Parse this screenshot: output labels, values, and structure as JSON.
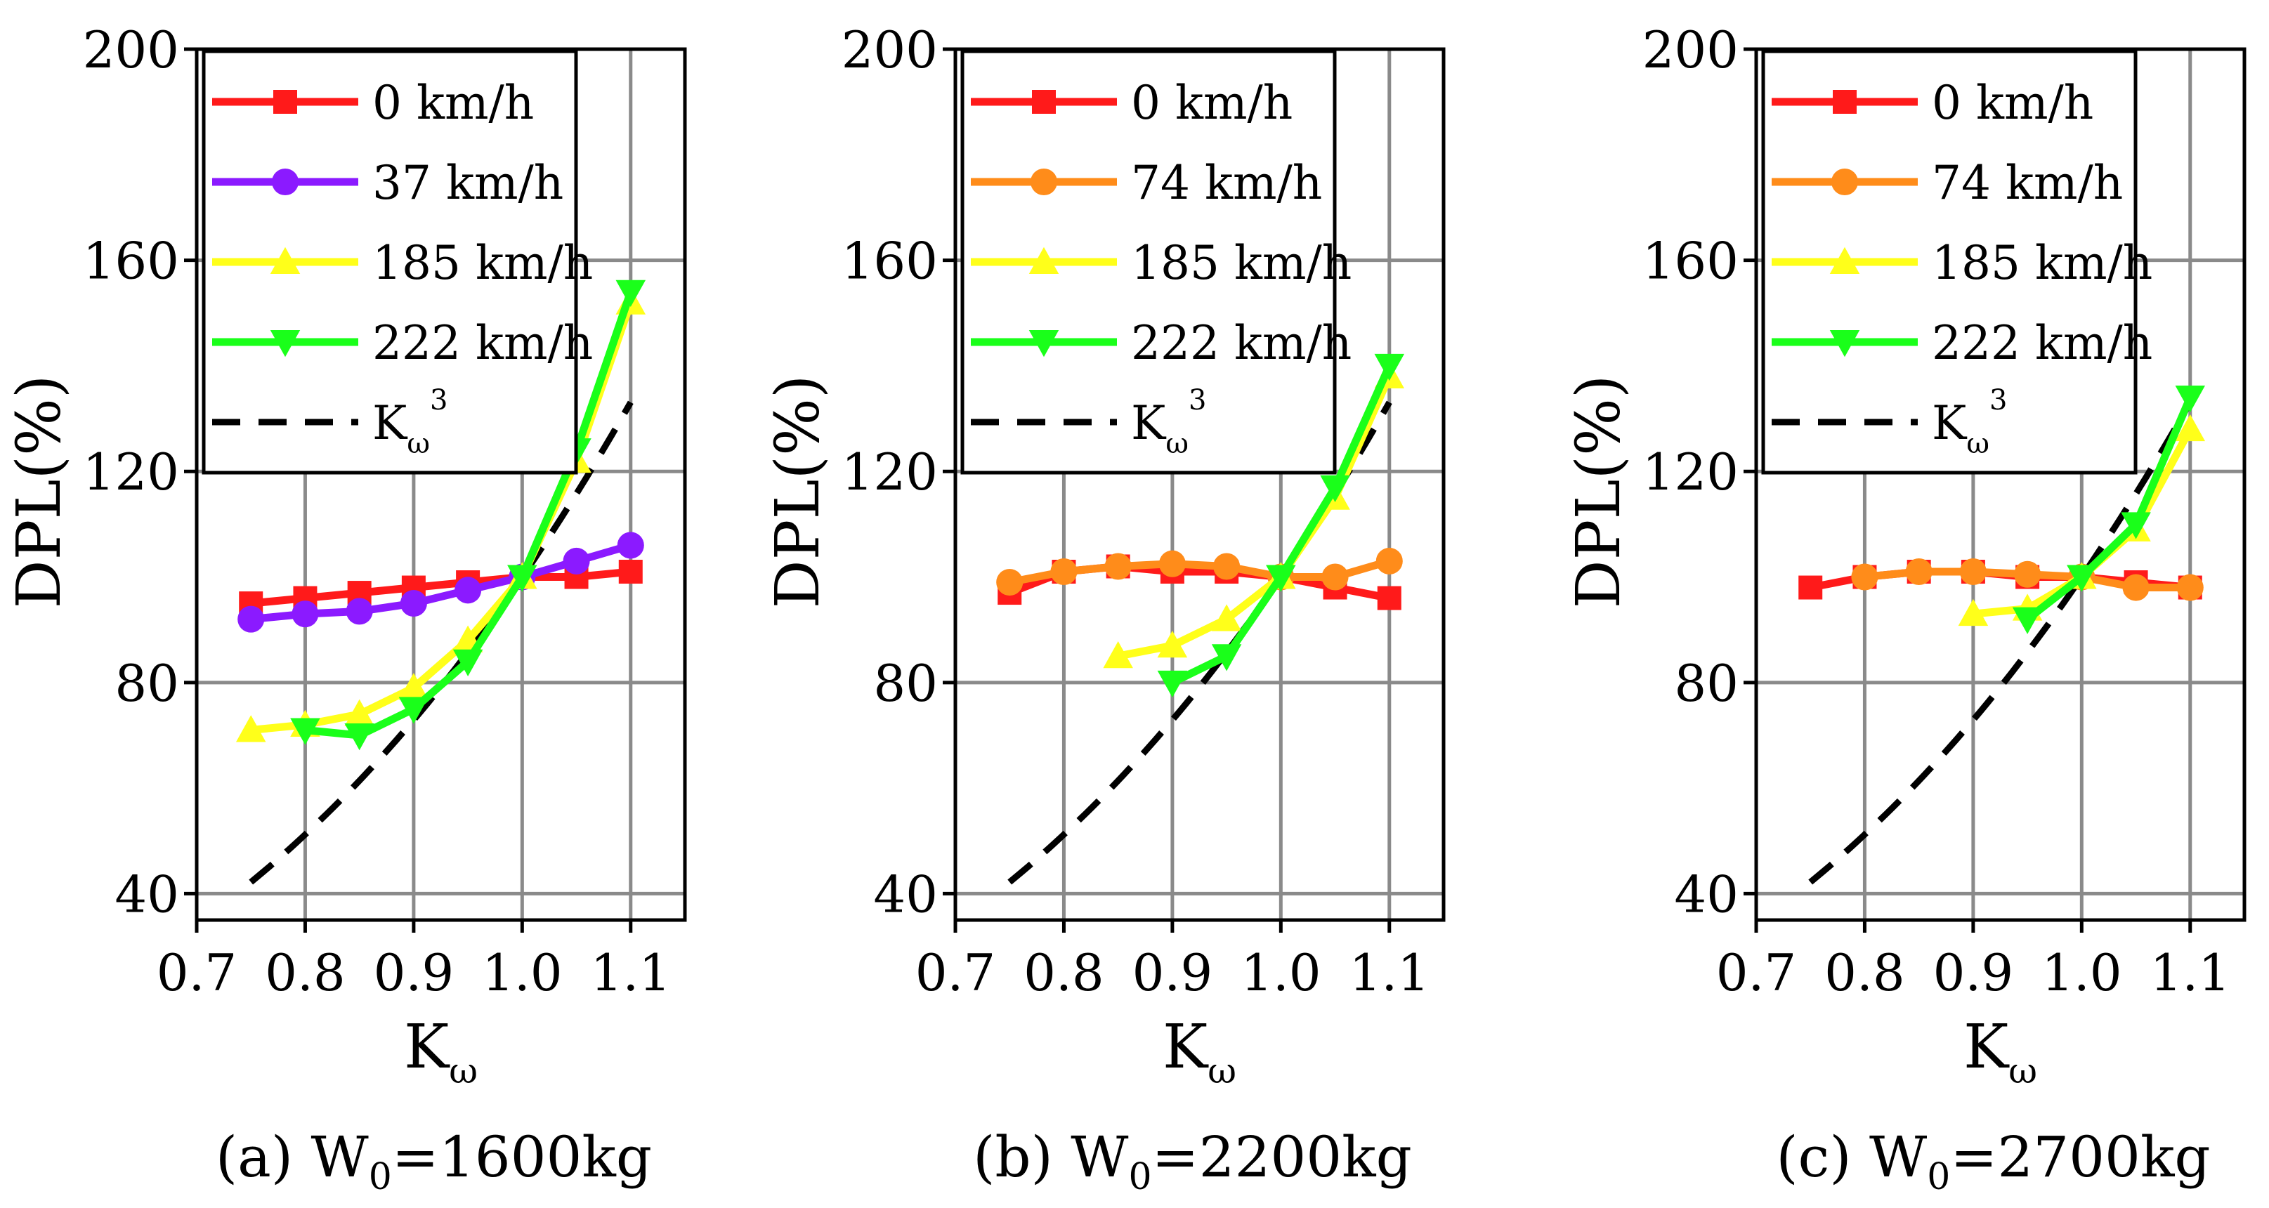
{
  "chart_data": [
    {
      "type": "line",
      "caption": "(a) W0=1600kg",
      "caption_parts": {
        "prefix": "(a) W",
        "sub": "0",
        "suffix": "=1600kg"
      },
      "xlabel": "K",
      "xlabel_sub": "ω",
      "ylabel": "DPL(%)",
      "xlim": [
        0.7,
        1.15
      ],
      "ylim": [
        35,
        200
      ],
      "xticks": [
        "0.7",
        "0.8",
        "0.9",
        "1.0",
        "1.1"
      ],
      "yticks": [
        "40",
        "80",
        "120",
        "160",
        "200"
      ],
      "grid": true,
      "legend_position": "top-left",
      "series": [
        {
          "name": "0 km/h",
          "color": "#ff1a1a",
          "marker": "square",
          "x": [
            0.75,
            0.8,
            0.85,
            0.9,
            0.95,
            1.0,
            1.05,
            1.1
          ],
          "y": [
            95,
            96,
            97,
            98,
            99,
            100,
            100,
            101
          ]
        },
        {
          "name": "37 km/h",
          "color": "#8b1aff",
          "marker": "circle",
          "x": [
            0.75,
            0.8,
            0.85,
            0.9,
            0.95,
            1.0,
            1.05,
            1.1
          ],
          "y": [
            92,
            93,
            93.5,
            95,
            97.5,
            100,
            103,
            106
          ]
        },
        {
          "name": "185 km/h",
          "color": "#ffff1a",
          "marker": "triangle-up",
          "x": [
            0.75,
            0.8,
            0.85,
            0.9,
            0.95,
            1.0,
            1.05,
            1.1
          ],
          "y": [
            71,
            72,
            74,
            79,
            88,
            100,
            122,
            152
          ]
        },
        {
          "name": "222 km/h",
          "color": "#1aff1a",
          "marker": "triangle-down",
          "x": [
            0.8,
            0.85,
            0.9,
            0.95,
            1.0,
            1.05,
            1.1
          ],
          "y": [
            71,
            70,
            75,
            84,
            100,
            124,
            154
          ]
        }
      ],
      "reference": {
        "name": "K",
        "name_sub": "ω",
        "name_sup": "3",
        "formula": "cubic",
        "x_range": [
          0.75,
          1.1
        ]
      }
    },
    {
      "type": "line",
      "caption": "(b) W0=2200kg",
      "caption_parts": {
        "prefix": "(b) W",
        "sub": "0",
        "suffix": "=2200kg"
      },
      "xlabel": "K",
      "xlabel_sub": "ω",
      "ylabel": "DPL(%)",
      "xlim": [
        0.7,
        1.15
      ],
      "ylim": [
        35,
        200
      ],
      "xticks": [
        "0.7",
        "0.8",
        "0.9",
        "1.0",
        "1.1"
      ],
      "yticks": [
        "40",
        "80",
        "120",
        "160",
        "200"
      ],
      "grid": true,
      "legend_position": "top-left",
      "series": [
        {
          "name": "0 km/h",
          "color": "#ff1a1a",
          "marker": "square",
          "x": [
            0.75,
            0.8,
            0.85,
            0.9,
            0.95,
            1.0,
            1.05,
            1.1
          ],
          "y": [
            97,
            101,
            102,
            101,
            101,
            100,
            98,
            96
          ]
        },
        {
          "name": "74 km/h",
          "color": "#ff8c1a",
          "marker": "circle",
          "x": [
            0.75,
            0.8,
            0.85,
            0.9,
            0.95,
            1.0,
            1.05,
            1.1
          ],
          "y": [
            99,
            101,
            102,
            102.5,
            102,
            100,
            100,
            103
          ]
        },
        {
          "name": "185 km/h",
          "color": "#ffff1a",
          "marker": "triangle-up",
          "x": [
            0.85,
            0.9,
            0.95,
            1.0,
            1.05,
            1.1
          ],
          "y": [
            85,
            87,
            92,
            100,
            115,
            138
          ]
        },
        {
          "name": "222 km/h",
          "color": "#1aff1a",
          "marker": "triangle-down",
          "x": [
            0.9,
            0.95,
            1.0,
            1.05,
            1.1
          ],
          "y": [
            80,
            85,
            100,
            117,
            140
          ]
        }
      ],
      "reference": {
        "name": "K",
        "name_sub": "ω",
        "name_sup": "3",
        "formula": "cubic",
        "x_range": [
          0.75,
          1.1
        ]
      }
    },
    {
      "type": "line",
      "caption": "(c) W0=2700kg",
      "caption_parts": {
        "prefix": "(c) W",
        "sub": "0",
        "suffix": "=2700kg"
      },
      "xlabel": "K",
      "xlabel_sub": "ω",
      "ylabel": "DPL(%)",
      "xlim": [
        0.7,
        1.15
      ],
      "ylim": [
        35,
        200
      ],
      "xticks": [
        "0.7",
        "0.8",
        "0.9",
        "1.0",
        "1.1"
      ],
      "yticks": [
        "40",
        "80",
        "120",
        "160",
        "200"
      ],
      "grid": true,
      "legend_position": "top-left",
      "series": [
        {
          "name": "0 km/h",
          "color": "#ff1a1a",
          "marker": "square",
          "x": [
            0.75,
            0.8,
            0.85,
            0.9,
            0.95,
            1.0,
            1.05,
            1.1
          ],
          "y": [
            98,
            100,
            101,
            101,
            100,
            100,
            99,
            98
          ]
        },
        {
          "name": "74 km/h",
          "color": "#ff8c1a",
          "marker": "circle",
          "x": [
            0.8,
            0.85,
            0.9,
            0.95,
            1.0,
            1.05,
            1.1
          ],
          "y": [
            100,
            101,
            101,
            100.5,
            100,
            98,
            98
          ]
        },
        {
          "name": "185 km/h",
          "color": "#ffff1a",
          "marker": "triangle-up",
          "x": [
            0.9,
            0.95,
            1.0,
            1.05,
            1.1
          ],
          "y": [
            93,
            94,
            100,
            109,
            128
          ]
        },
        {
          "name": "222 km/h",
          "color": "#1aff1a",
          "marker": "triangle-down",
          "x": [
            0.95,
            1.0,
            1.05,
            1.1
          ],
          "y": [
            92,
            100,
            110,
            134
          ]
        }
      ],
      "reference": {
        "name": "K",
        "name_sub": "ω",
        "name_sup": "3",
        "formula": "cubic",
        "x_range": [
          0.75,
          1.1
        ]
      }
    }
  ]
}
